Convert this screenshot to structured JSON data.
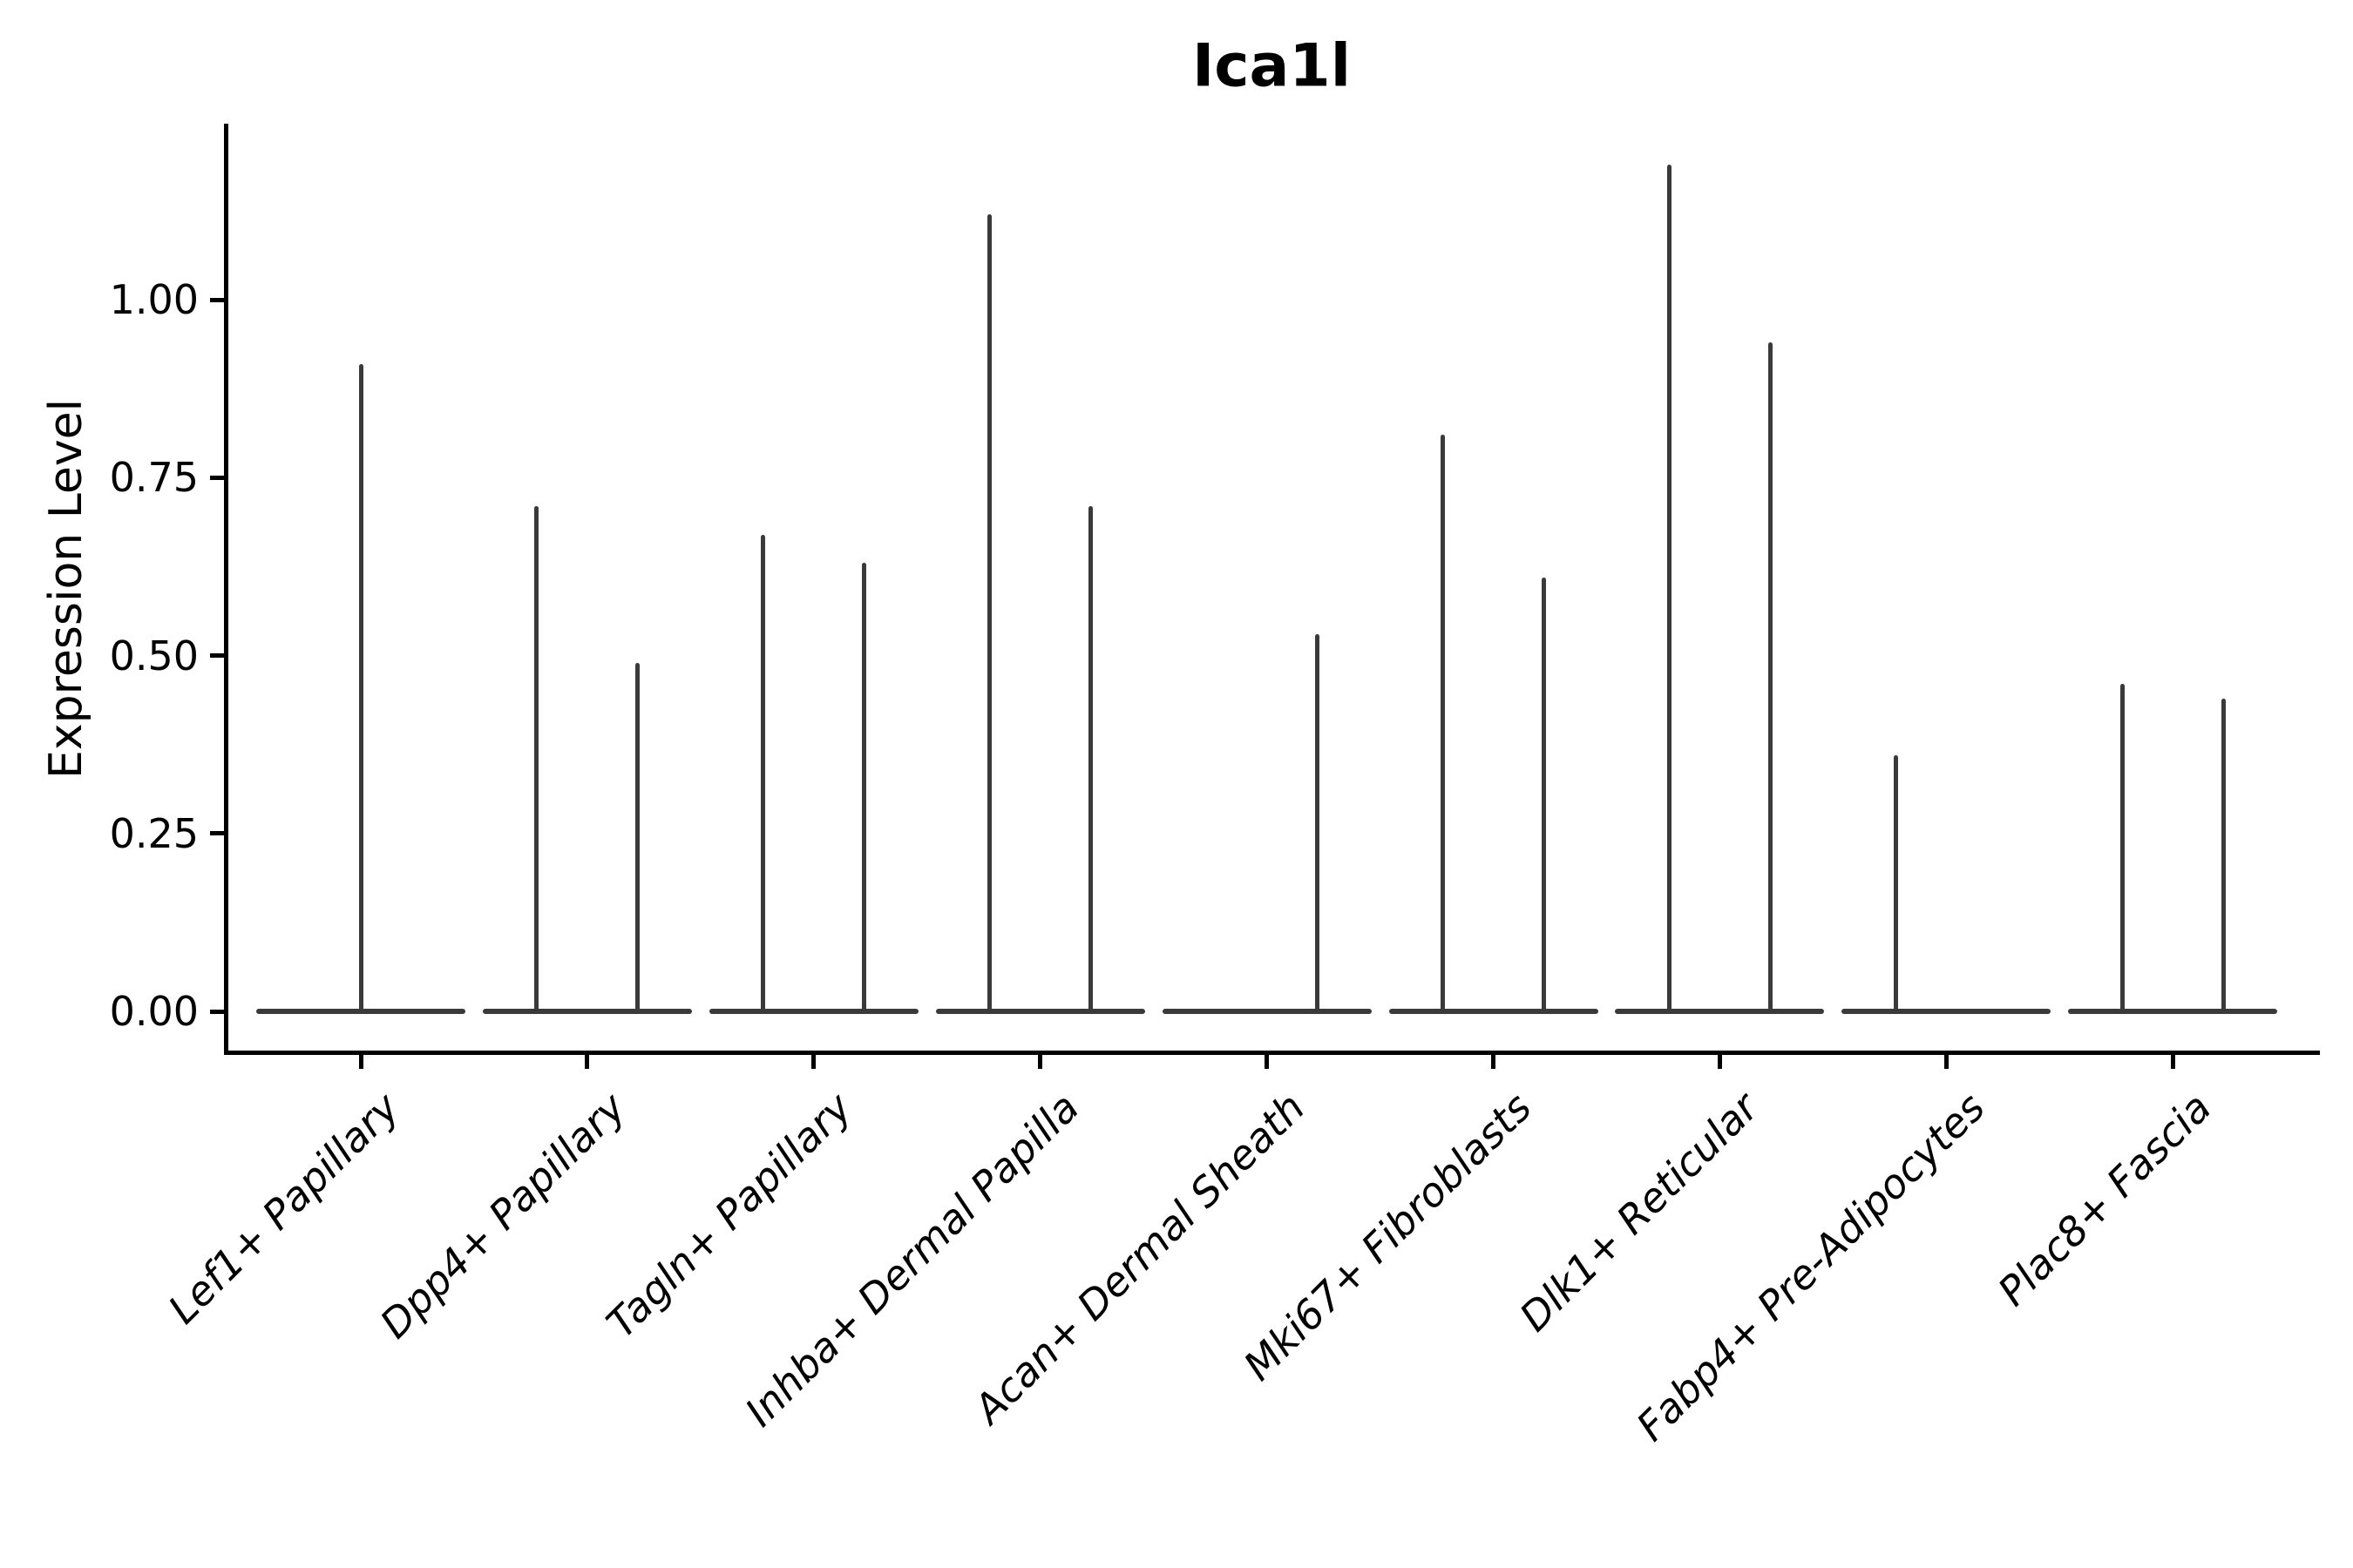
{
  "chart_data": {
    "type": "violin",
    "title": "Ica1l",
    "xlabel": "",
    "ylabel": "Expression Level",
    "ylim": [
      -0.06,
      1.25
    ],
    "ytick_labels": [
      "0.00",
      "0.25",
      "0.50",
      "0.75",
      "1.00"
    ],
    "ytick_values": [
      0.0,
      0.25,
      0.5,
      0.75,
      1.0
    ],
    "grid": false,
    "legend": "none",
    "categories": [
      "Lef1+ Papillary",
      "Dpp4+ Papillary",
      "Tagln+ Papillary",
      "Inhba+ Dermal Papilla",
      "Acan+ Dermal Sheath",
      "Mki67+ Fibroblasts",
      "Dlk1+ Reticular",
      "Fabp4+ Pre-Adipocytes",
      "Plac8+ Fascia"
    ],
    "violins": [
      {
        "category": "Lef1+ Papillary",
        "baseline_value": 0.0,
        "spikes": [
          {
            "pos": "center",
            "peak": 0.91
          }
        ]
      },
      {
        "category": "Dpp4+ Papillary",
        "baseline_value": 0.0,
        "spikes": [
          {
            "pos": "left",
            "peak": 0.71
          },
          {
            "pos": "right",
            "peak": 0.49
          }
        ]
      },
      {
        "category": "Tagln+ Papillary",
        "baseline_value": 0.0,
        "spikes": [
          {
            "pos": "left",
            "peak": 0.67
          },
          {
            "pos": "right",
            "peak": 0.63
          }
        ]
      },
      {
        "category": "Inhba+ Dermal Papilla",
        "baseline_value": 0.0,
        "spikes": [
          {
            "pos": "left",
            "peak": 1.12
          },
          {
            "pos": "right",
            "peak": 0.71
          }
        ]
      },
      {
        "category": "Acan+ Dermal Sheath",
        "baseline_value": 0.0,
        "spikes": [
          {
            "pos": "right",
            "peak": 0.53
          }
        ]
      },
      {
        "category": "Mki67+ Fibroblasts",
        "baseline_value": 0.0,
        "spikes": [
          {
            "pos": "left",
            "peak": 0.81
          },
          {
            "pos": "right",
            "peak": 0.61
          }
        ]
      },
      {
        "category": "Dlk1+ Reticular",
        "baseline_value": 0.0,
        "spikes": [
          {
            "pos": "left",
            "peak": 1.19
          },
          {
            "pos": "right",
            "peak": 0.94
          }
        ]
      },
      {
        "category": "Fabp4+ Pre-Adipocytes",
        "baseline_value": 0.0,
        "spikes": [
          {
            "pos": "left",
            "peak": 0.36
          }
        ]
      },
      {
        "category": "Plac8+ Fascia",
        "baseline_value": 0.0,
        "spikes": [
          {
            "pos": "left",
            "peak": 0.46
          },
          {
            "pos": "right",
            "peak": 0.44
          }
        ]
      }
    ],
    "colors": {
      "violin": "#3a3a3a",
      "axis": "#000000",
      "text": "#000000",
      "background": "#ffffff"
    }
  }
}
